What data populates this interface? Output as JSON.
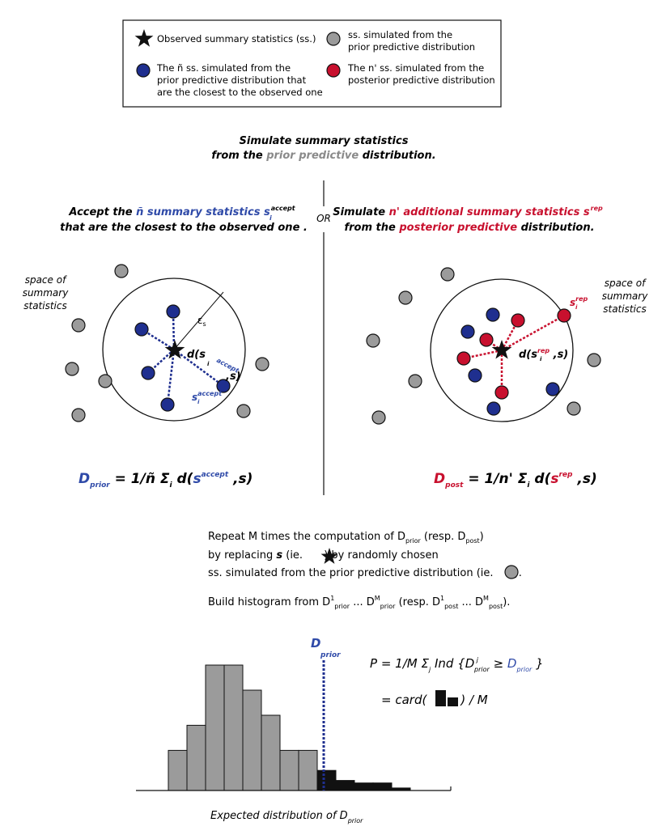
{
  "colors": {
    "blue": "#1f2f8f",
    "blue_text": "#2f4aa8",
    "red": "#c8102e",
    "gray_fill": "#9b9b9b",
    "gray_text": "#8a8a8a",
    "black": "#111111"
  },
  "legend": {
    "observed": "Observed summary statistics (ss.)",
    "simulated_prior_1": "ss. simulated from the",
    "simulated_prior_2": "prior predictive distribution",
    "accepted_1": "The ñ  ss.  simulated  from  the",
    "accepted_2": "prior  predictive  distribution  that",
    "accepted_3": "are the closest to the observed one",
    "posterior_1": "The n'  ss. simulated from the",
    "posterior_2": "posterior predictive distribution",
    "icons": {
      "observed": "star-icon",
      "simulated_prior": "gray-circle-icon",
      "accepted": "blue-circle-icon",
      "posterior": "red-circle-icon"
    }
  },
  "top_title": {
    "line1": "Simulate summary statistics",
    "line2_pre": "from the ",
    "line2_colored": "prior predictive",
    "line2_post": " distribution."
  },
  "or_label": "OR",
  "left": {
    "title1_pre": "Accept the ",
    "title1_colored": "ñ summary statistics s",
    "title1_sub": "i",
    "title1_sup": "accept",
    "title2": "that are the closest to the observed one .",
    "space_label": [
      "space of",
      "summary",
      "statistics"
    ],
    "epsilon_label": "ε",
    "epsilon_sub": "s",
    "distance_label_pre": "d(s",
    "distance_label_sub": "i",
    "distance_label_sup": "accept",
    "distance_label_post": ",s)",
    "point_label": "s",
    "point_label_sub": "i",
    "point_label_sup": "accept",
    "formula_D": "D",
    "formula_D_sub": "prior",
    "formula_mid": " = 1/ñ  Σ",
    "formula_sigma_sub": "i",
    "formula_d": " d(",
    "formula_s": "s",
    "formula_s_sub": "i",
    "formula_s_sup": "accept",
    "formula_end": " ,s)"
  },
  "right": {
    "title1_pre": "Simulate ",
    "title1_colored": "n' additional summary statistics s",
    "title1_sub": "i",
    "title1_sup": "rep",
    "title2_pre": "from the ",
    "title2_colored": "posterior predictive",
    "title2_post": " distribution.",
    "space_label": [
      "space of",
      "summary",
      "statistics"
    ],
    "distance_label_pre": "d(s",
    "distance_label_sub": "i",
    "distance_label_sup": "rep",
    "distance_label_post": " ,s)",
    "point_label": "s",
    "point_label_sub": "i",
    "point_label_sup": "rep",
    "formula_D": "D",
    "formula_D_sub": "post",
    "formula_mid": " = 1/n'  Σ",
    "formula_sigma_sub": "i",
    "formula_d": " d(",
    "formula_s": "s",
    "formula_s_sub": "i",
    "formula_s_sup": "rep",
    "formula_end": " ,s)"
  },
  "repeat": {
    "l1_a": "Repeat M times the computation of D",
    "l1_sub1": "prior",
    "l1_b": "  (resp. D",
    "l1_sub2": "post",
    "l1_c": ")",
    "l2_a": "by replacing ",
    "l2_s": "s",
    "l2_b": " (ie. ",
    "l2_c": " ) by randomly chosen",
    "l3_a": "ss. simulated from the prior predictive distribution (ie. ",
    "l3_b": " ).",
    "l4_a": "Build histogram from D",
    "l4_sup1": "1",
    "l4_sub1": "prior",
    "l4_dots1": " ... D",
    "l4_sup2": "M",
    "l4_sub2": "prior",
    "l4_b": "  (resp. D",
    "l4_sup3": "1",
    "l4_sub3": "post",
    "l4_dots2": " ... D",
    "l4_sup4": "M",
    "l4_sub4": "post",
    "l4_c": ")."
  },
  "histogram": {
    "dprior_label": "D",
    "dprior_sub": "prior",
    "gray_values": [
      8,
      13,
      25,
      25,
      20,
      15,
      8,
      8
    ],
    "black_values": [
      4,
      2,
      1.5,
      1.5,
      0.5
    ],
    "x_label_pre": "Expected distribution of D",
    "x_label_sub": "prior"
  },
  "pvalue": {
    "p_pre": "P = 1/M  Σ",
    "p_sub_j": "j",
    "p_mid": "  Ind {D",
    "p_sup_j": " j",
    "p_sub_prior": "prior",
    "p_ge": "  ≥  ",
    "p_D": "D",
    "p_D_sub": "prior",
    "p_end": " }",
    "card_pre": "= card(",
    "card_post": ")  / M"
  }
}
